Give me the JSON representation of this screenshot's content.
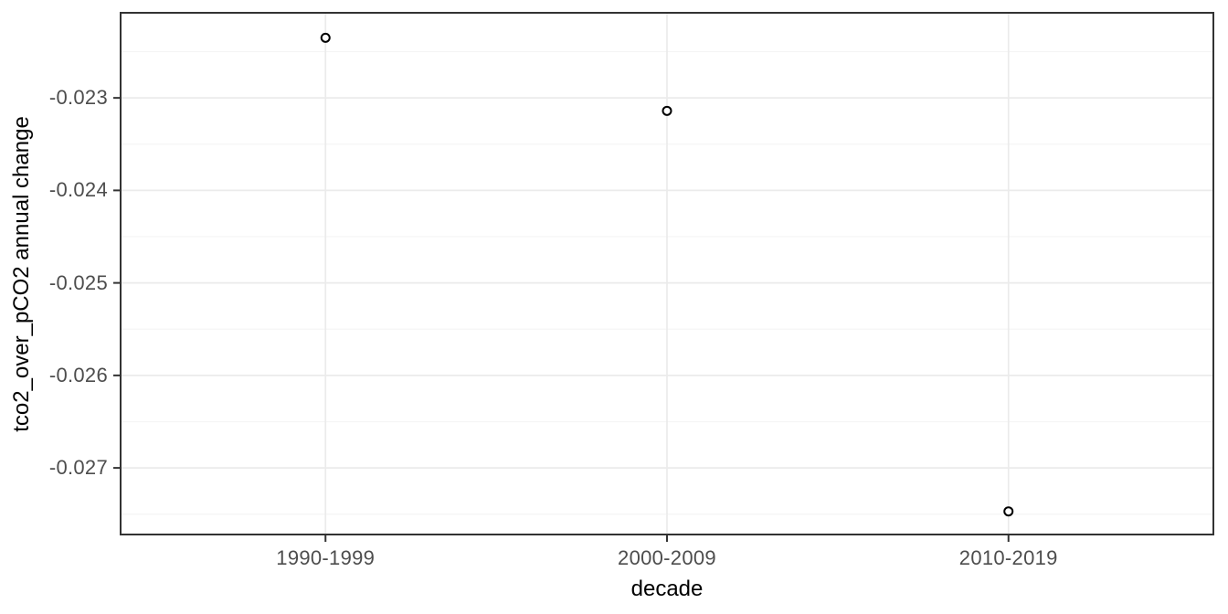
{
  "chart_data": {
    "type": "scatter",
    "title": "",
    "xlabel": "decade",
    "ylabel": "tco2_over_pCO2 annual change",
    "categories": [
      "1990-1999",
      "2000-2009",
      "2010-2019"
    ],
    "values": [
      -0.02235,
      -0.02314,
      -0.02747
    ],
    "ylim": [
      -0.02772,
      -0.02208
    ],
    "ytick_labels": [
      "-0.023",
      "-0.024",
      "-0.025",
      "-0.026",
      "-0.027"
    ],
    "ytick_values": [
      -0.023,
      -0.024,
      -0.025,
      -0.026,
      -0.027
    ],
    "yminor_values": [
      -0.0225,
      -0.0235,
      -0.0245,
      -0.0255,
      -0.0265,
      -0.0275
    ],
    "grid": "horizontal major+minor, vertical major only",
    "legend_position": "none",
    "marker": "open-circle"
  },
  "colors": {
    "background": "#ffffff",
    "panel_background": "#ffffff",
    "panel_border": "#333333",
    "grid_major": "#ebebeb",
    "grid_minor": "#f5f5f5",
    "tick_mark": "#333333",
    "tick_label": "#4d4d4d",
    "axis_title": "#000000",
    "point_stroke": "#000000",
    "point_fill": "#ffffff"
  }
}
